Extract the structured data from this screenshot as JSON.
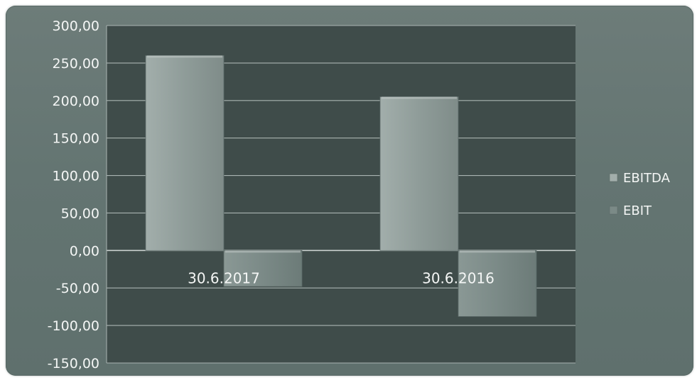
{
  "chart_data": {
    "type": "bar",
    "categories": [
      "30.6.2017",
      "30.6.2016"
    ],
    "series": [
      {
        "name": "EBITDA",
        "values": [
          260,
          205
        ],
        "color": "#8f9c99"
      },
      {
        "name": "EBIT",
        "values": [
          -48,
          -88
        ],
        "color": "#7b8a87"
      }
    ],
    "ylim": [
      -150,
      300
    ],
    "yticks": [
      300,
      250,
      200,
      150,
      100,
      50,
      0,
      -50,
      -100,
      -150
    ],
    "ytick_labels": [
      "300,00",
      "250,00",
      "200,00",
      "150,00",
      "100,00",
      "50,00",
      "0,00",
      "-50,00",
      "-100,00",
      "-150,00"
    ],
    "grid": true,
    "legend": "right",
    "plot_background": "#3f4c4a",
    "title": "",
    "xlabel": "",
    "ylabel": ""
  }
}
